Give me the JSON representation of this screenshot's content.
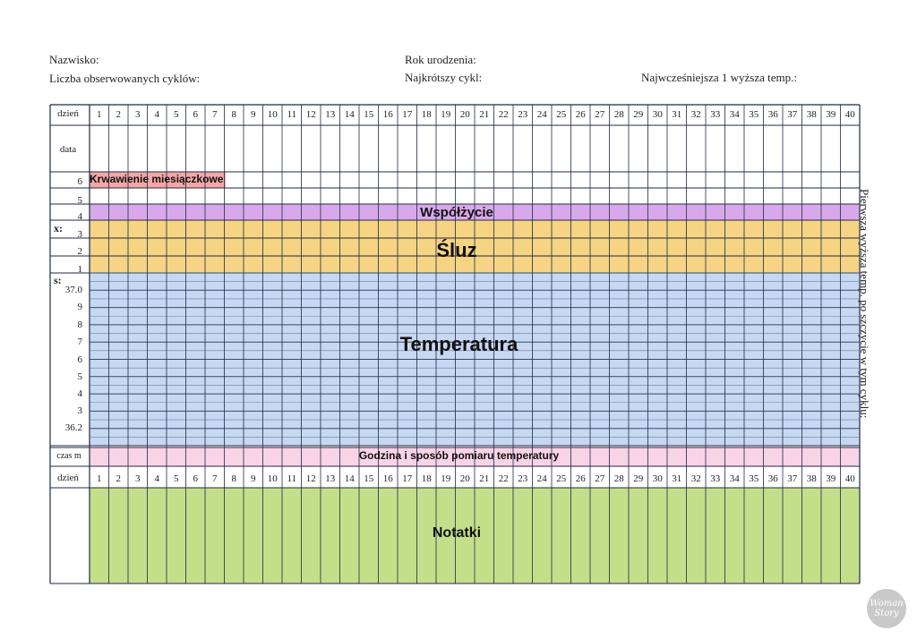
{
  "header": {
    "surname_label": "Nazwisko:",
    "birth_year_label": "Rok urodzenia:",
    "cycles_label": "Liczba obserwowanych cyklów:",
    "shortest_cycle_label": "Najkrótszy cykl:",
    "earliest_temp_label": "Najwcześniejsza 1 wyższa temp.:"
  },
  "table": {
    "day_label": "dzień",
    "date_label": "data",
    "time_label": "czas m",
    "days": [
      "1",
      "2",
      "3",
      "4",
      "5",
      "6",
      "7",
      "8",
      "9",
      "10",
      "11",
      "12",
      "13",
      "14",
      "15",
      "16",
      "17",
      "18",
      "19",
      "20",
      "21",
      "22",
      "23",
      "24",
      "25",
      "26",
      "27",
      "28",
      "29",
      "30",
      "31",
      "32",
      "33",
      "34",
      "35",
      "36",
      "37",
      "38",
      "39",
      "40"
    ],
    "x_label": "x:",
    "s_label": "s:",
    "mucus_scale": [
      "6",
      "5",
      "4",
      "3",
      "2",
      "1"
    ],
    "temp_scale": [
      "37.0",
      "9",
      "8",
      "7",
      "6",
      "5",
      "4",
      "3",
      "36.2"
    ]
  },
  "sections": {
    "bleeding": "Krwawienie miesiączkowe",
    "intercourse": "Współżycie",
    "mucus": "Śluz",
    "temperature": "Temperatura",
    "time_method": "Godzina i sposób pomiaru temperatury",
    "notes": "Notatki"
  },
  "side_note": "Pierwsza  wyższa temp. po szczycie w tym cyklu:",
  "colors": {
    "bleeding": "#f4a7a7",
    "intercourse": "#d9a8ea",
    "mucus": "#f5d483",
    "temperature": "#c7d8f2",
    "time_method": "#f9d3e6",
    "notes": "#c4df8a",
    "grid": "#1f2a44"
  },
  "logo_text": "Woman Story"
}
